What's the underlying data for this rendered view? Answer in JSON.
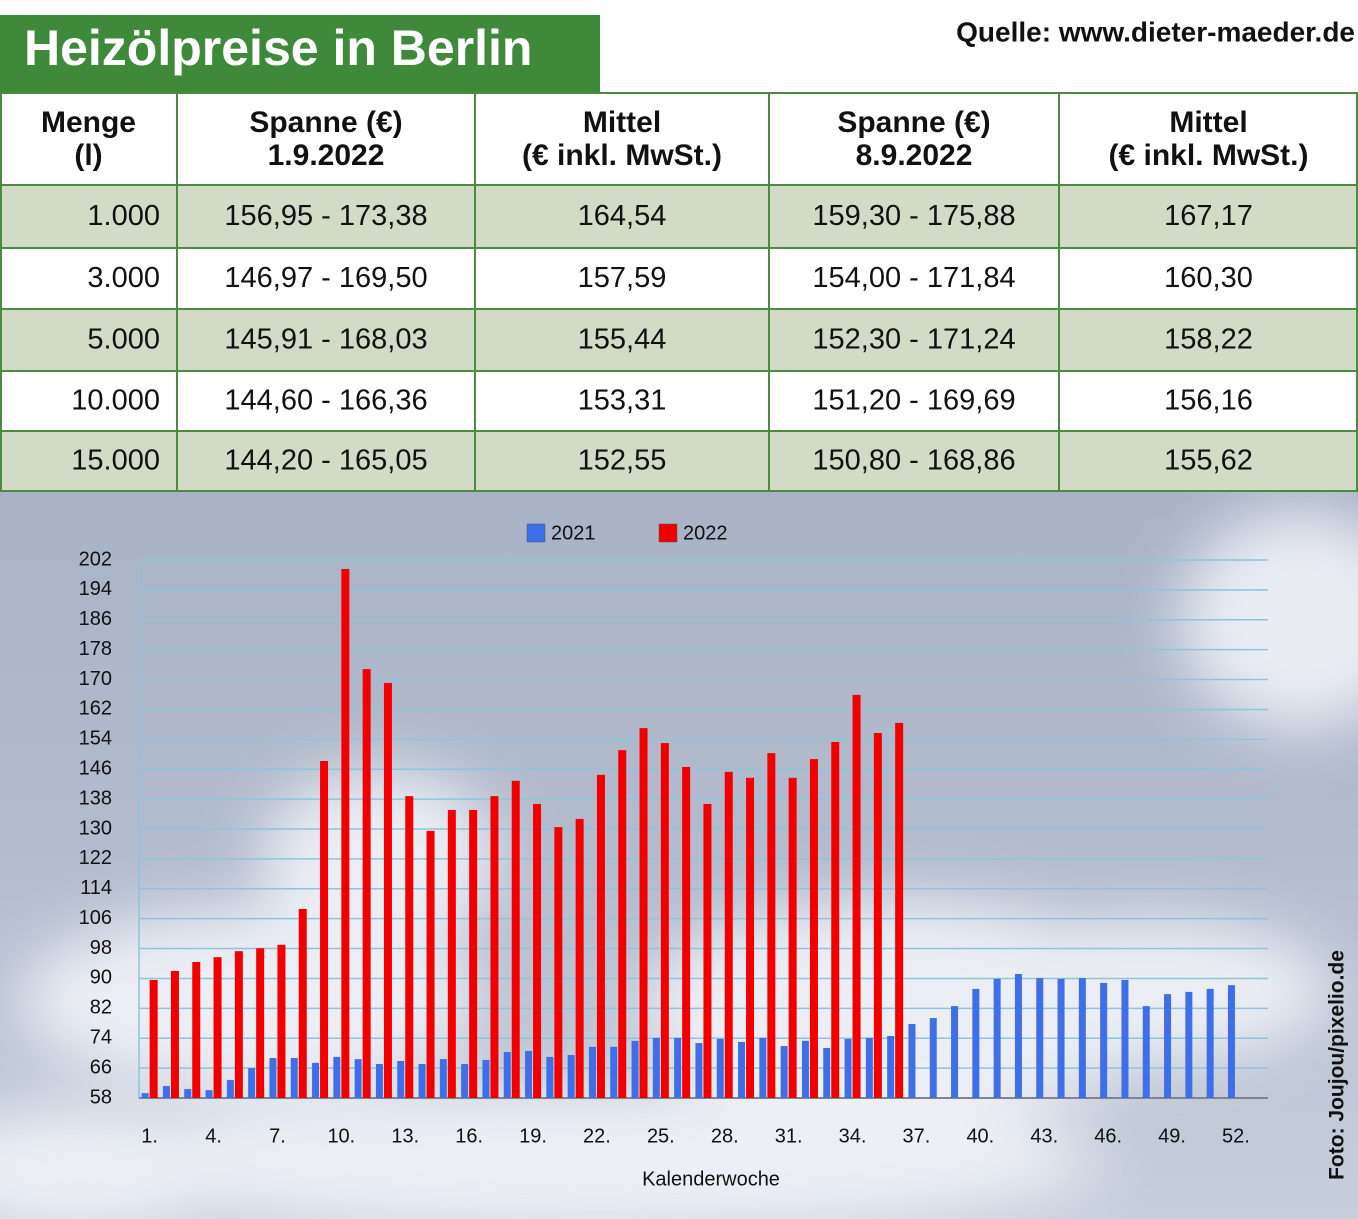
{
  "title": "Heizölpreise in Berlin",
  "source": "Quelle: www.dieter-maeder.de",
  "photo_credit": "Foto: Joujou/pixelio.de",
  "table": {
    "header": [
      [
        "Menge",
        "(l)"
      ],
      [
        "Spanne (€)",
        "1.9.2022"
      ],
      [
        "Mittel",
        "(€ inkl. MwSt.)"
      ],
      [
        "Spanne (€)",
        "8.9.2022"
      ],
      [
        "Mittel",
        "(€ inkl. MwSt.)"
      ]
    ],
    "rows": [
      [
        "1.000",
        "156,95 - 173,38",
        "164,54",
        "159,30 - 175,88",
        "167,17"
      ],
      [
        "3.000",
        "146,97 - 169,50",
        "157,59",
        "154,00 - 171,84",
        "160,30"
      ],
      [
        "5.000",
        "145,91 - 168,03",
        "155,44",
        "152,30 - 171,24",
        "158,22"
      ],
      [
        "10.000",
        "144,60 - 166,36",
        "153,31",
        "151,20 - 169,69",
        "156,16"
      ],
      [
        "15.000",
        "144,20 - 165,05",
        "152,55",
        "150,80 - 168,86",
        "155,62"
      ]
    ]
  },
  "chart_data": {
    "type": "bar",
    "xlabel": "Kalenderwoche",
    "categories": [
      "1.",
      null,
      null,
      "4.",
      null,
      null,
      "7.",
      null,
      null,
      "10.",
      null,
      null,
      "13.",
      null,
      null,
      "16.",
      null,
      null,
      "19.",
      null,
      null,
      "22.",
      null,
      null,
      "25.",
      null,
      null,
      "28.",
      null,
      null,
      "31.",
      null,
      null,
      "34.",
      null,
      null,
      "37.",
      null,
      null,
      "40.",
      null,
      null,
      "43.",
      null,
      null,
      "46.",
      null,
      null,
      "49.",
      null,
      null,
      "52."
    ],
    "series": [
      {
        "name": "2021",
        "color": "#3f6fe8",
        "values": [
          59.3,
          61.2,
          60.4,
          60.1,
          62.8,
          66,
          68.7,
          68.7,
          67.4,
          69,
          68.4,
          67.1,
          67.9,
          67.1,
          68.4,
          67.1,
          68.2,
          70.3,
          70.6,
          69,
          69.5,
          71.7,
          71.7,
          73.3,
          74.1,
          74.1,
          72.7,
          73.8,
          73,
          74.1,
          71.9,
          73.3,
          71.4,
          73.8,
          74.1,
          74.6,
          77.8,
          79.4,
          82.6,
          87.2,
          89.9,
          91.2,
          90.1,
          89.9,
          90.1,
          88.8,
          89.6,
          82.6,
          85.8,
          86.4,
          87.2,
          88.2
        ]
      },
      {
        "name": "2022",
        "color": "#f20000",
        "values": [
          89.6,
          92,
          94.4,
          95.7,
          97.3,
          98.1,
          99,
          108.6,
          148.2,
          199.6,
          172.8,
          169.1,
          138.8,
          129.5,
          135.1,
          135.1,
          138.8,
          142.9,
          136.7,
          130.5,
          132.7,
          144.5,
          151.1,
          157,
          153,
          146.6,
          136.7,
          145.3,
          143.7,
          150.3,
          143.7,
          148.7,
          153.3,
          165.9,
          155.7,
          158.4,
          null,
          null,
          null,
          null,
          null,
          null,
          null,
          null,
          null,
          null,
          null,
          null,
          null,
          null,
          null,
          null
        ]
      }
    ],
    "ylim": [
      58,
      202
    ],
    "yticks": [
      58,
      66,
      74,
      82,
      90,
      98,
      106,
      114,
      122,
      130,
      138,
      146,
      154,
      162,
      170,
      178,
      186,
      194,
      202
    ],
    "grid": true,
    "legend": "top"
  }
}
